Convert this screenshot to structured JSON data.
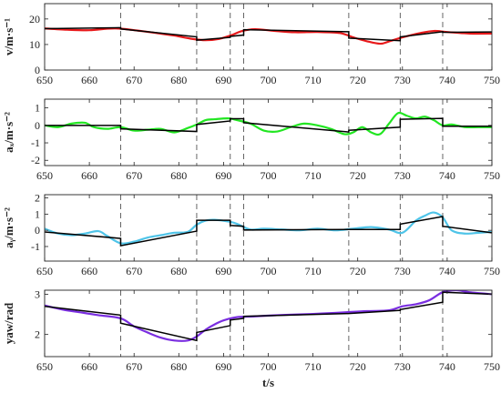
{
  "chart_data": [
    {
      "type": "line",
      "ylabel": "v/m·s⁻¹",
      "ylim": [
        0,
        26
      ],
      "yticks": [
        0,
        10,
        20
      ],
      "series": [
        {
          "color": "#e8191b",
          "style": "smooth",
          "x": [
            650,
            655,
            660,
            664,
            667,
            671,
            675,
            679,
            683,
            686,
            689,
            692,
            694,
            697,
            701,
            706,
            711,
            716,
            719,
            722,
            725,
            727,
            730,
            734,
            737,
            740,
            745,
            750
          ],
          "y": [
            16.3,
            15.8,
            15.6,
            16.2,
            16.2,
            15.4,
            14.5,
            13.5,
            12.2,
            11.7,
            12.2,
            13.8,
            15.2,
            16.0,
            15.4,
            14.8,
            14.9,
            14.5,
            12.8,
            11.3,
            10.3,
            11.2,
            12.8,
            14.5,
            15.3,
            14.9,
            14.3,
            14.3
          ]
        },
        {
          "color": "#000000",
          "style": "piecewise",
          "segments": [
            [
              [
                650,
                16.2
              ],
              [
                667,
                16.6
              ]
            ],
            [
              [
                667,
                16.1
              ],
              [
                684,
                13.0
              ]
            ],
            [
              [
                684,
                11.7
              ],
              [
                691.5,
                12.8
              ]
            ],
            [
              [
                691.5,
                13.2
              ],
              [
                694.5,
                13.7
              ]
            ],
            [
              [
                694.5,
                15.8
              ],
              [
                718,
                15.0
              ]
            ],
            [
              [
                718,
                12.5
              ],
              [
                729.5,
                11.5
              ]
            ],
            [
              [
                729.5,
                13.0
              ],
              [
                739,
                15.0
              ]
            ],
            [
              [
                739,
                14.8
              ],
              [
                750,
                14.9
              ]
            ]
          ]
        }
      ]
    },
    {
      "type": "line",
      "ylabel": "aₓ/m·s⁻²",
      "ylim": [
        -2.3,
        1.5
      ],
      "yticks": [
        -2,
        -1,
        0,
        1
      ],
      "series": [
        {
          "color": "#22e622",
          "style": "smooth",
          "x": [
            650,
            653,
            656,
            659,
            661,
            664,
            667,
            670,
            673,
            676,
            679,
            682,
            684,
            686,
            688,
            691,
            693,
            696,
            699,
            702,
            705,
            708,
            711,
            714,
            717,
            719,
            721,
            723,
            725,
            727,
            729,
            731,
            733,
            735,
            737,
            739,
            741,
            744,
            747,
            750
          ],
          "y": [
            0.0,
            -0.1,
            0.1,
            0.15,
            -0.1,
            -0.2,
            -0.1,
            -0.3,
            -0.25,
            -0.2,
            -0.4,
            -0.15,
            0.05,
            0.3,
            0.35,
            0.4,
            0.3,
            0.1,
            -0.3,
            -0.35,
            -0.1,
            0.1,
            0.0,
            -0.2,
            -0.5,
            -0.4,
            -0.1,
            -0.4,
            -0.5,
            0.1,
            0.7,
            0.55,
            0.4,
            0.5,
            0.3,
            0.0,
            0.05,
            -0.1,
            -0.1,
            -0.1
          ]
        },
        {
          "color": "#000000",
          "style": "piecewise",
          "segments": [
            [
              [
                650,
                0.0
              ],
              [
                667,
                0.0
              ]
            ],
            [
              [
                667,
                -0.2
              ],
              [
                684,
                -0.35
              ]
            ],
            [
              [
                684,
                0.05
              ],
              [
                691.5,
                0.25
              ]
            ],
            [
              [
                691.5,
                0.38
              ],
              [
                694.5,
                0.38
              ]
            ],
            [
              [
                694.5,
                0.15
              ],
              [
                718,
                -0.38
              ]
            ],
            [
              [
                718,
                -0.28
              ],
              [
                729.5,
                -0.1
              ]
            ],
            [
              [
                729.5,
                0.35
              ],
              [
                739,
                0.4
              ]
            ],
            [
              [
                739,
                -0.05
              ],
              [
                750,
                -0.05
              ]
            ]
          ]
        }
      ]
    },
    {
      "type": "line",
      "ylabel": "aᵧ/m·s⁻²",
      "ylim": [
        -1.9,
        2.2
      ],
      "yticks": [
        -1,
        0,
        1,
        2
      ],
      "series": [
        {
          "color": "#4fc4e8",
          "style": "smooth",
          "x": [
            650,
            653,
            656,
            659,
            662,
            664,
            667,
            670,
            673,
            676,
            679,
            682,
            684,
            686,
            688,
            691,
            693,
            696,
            699,
            703,
            707,
            711,
            715,
            719,
            723,
            727,
            730,
            733,
            735,
            737,
            739,
            741,
            744,
            747,
            750
          ],
          "y": [
            0.1,
            -0.2,
            -0.3,
            -0.2,
            -0.05,
            -0.35,
            -0.8,
            -0.7,
            -0.45,
            -0.3,
            -0.15,
            -0.1,
            0.35,
            0.6,
            0.65,
            0.55,
            0.4,
            0.05,
            0.1,
            0.05,
            0.0,
            0.1,
            0.0,
            0.1,
            0.2,
            0.05,
            -0.15,
            0.6,
            0.9,
            1.1,
            0.8,
            0.0,
            -0.2,
            -0.15,
            -0.1
          ]
        },
        {
          "color": "#000000",
          "style": "piecewise",
          "segments": [
            [
              [
                650,
                -0.1
              ],
              [
                667,
                -0.5
              ]
            ],
            [
              [
                667,
                -0.95
              ],
              [
                684,
                -0.05
              ]
            ],
            [
              [
                684,
                0.62
              ],
              [
                691.5,
                0.62
              ]
            ],
            [
              [
                691.5,
                0.3
              ],
              [
                694.5,
                0.25
              ]
            ],
            [
              [
                694.5,
                0.02
              ],
              [
                718,
                0.05
              ]
            ],
            [
              [
                718,
                0.05
              ],
              [
                729.5,
                0.05
              ]
            ],
            [
              [
                729.5,
                0.38
              ],
              [
                739,
                0.85
              ]
            ],
            [
              [
                739,
                0.25
              ],
              [
                750,
                -0.15
              ]
            ]
          ]
        }
      ]
    },
    {
      "type": "line",
      "ylabel": "yaw/rad",
      "xlabel": "t/s",
      "ylim": [
        1.45,
        3.1
      ],
      "yticks": [
        2,
        3
      ],
      "yticklabels": [
        "2",
        "3"
      ],
      "series": [
        {
          "color": "#7a2ee0",
          "style": "smooth",
          "x": [
            650,
            654,
            658,
            662,
            667,
            670,
            673,
            676,
            679,
            682,
            684,
            686,
            688,
            690,
            693,
            697,
            702,
            707,
            712,
            717,
            722,
            727,
            730,
            733,
            736,
            739,
            742,
            745,
            750
          ],
          "y": [
            2.72,
            2.62,
            2.55,
            2.48,
            2.4,
            2.2,
            2.05,
            1.92,
            1.85,
            1.85,
            1.95,
            2.12,
            2.25,
            2.35,
            2.43,
            2.45,
            2.48,
            2.5,
            2.52,
            2.55,
            2.58,
            2.6,
            2.7,
            2.75,
            2.85,
            3.05,
            3.1,
            3.05,
            3.0
          ]
        },
        {
          "color": "#000000",
          "style": "piecewise",
          "segments": [
            [
              [
                650,
                2.7
              ],
              [
                667,
                2.48
              ]
            ],
            [
              [
                667,
                2.28
              ],
              [
                684,
                1.85
              ]
            ],
            [
              [
                684,
                2.05
              ],
              [
                691.5,
                2.22
              ]
            ],
            [
              [
                691.5,
                2.36
              ],
              [
                694.5,
                2.4
              ]
            ],
            [
              [
                694.5,
                2.45
              ],
              [
                718,
                2.52
              ]
            ],
            [
              [
                718,
                2.52
              ],
              [
                729.5,
                2.6
              ]
            ],
            [
              [
                729.5,
                2.62
              ],
              [
                739,
                2.8
              ]
            ],
            [
              [
                739,
                3.05
              ],
              [
                750,
                3.0
              ]
            ]
          ]
        }
      ]
    }
  ],
  "shared": {
    "xlim": [
      650,
      750
    ],
    "xticks": [
      650,
      660,
      670,
      680,
      690,
      700,
      710,
      720,
      730,
      740,
      750
    ],
    "dividers": [
      667,
      684,
      691.5,
      694.5,
      718,
      729.5,
      739
    ],
    "divider_color": "#555555"
  }
}
